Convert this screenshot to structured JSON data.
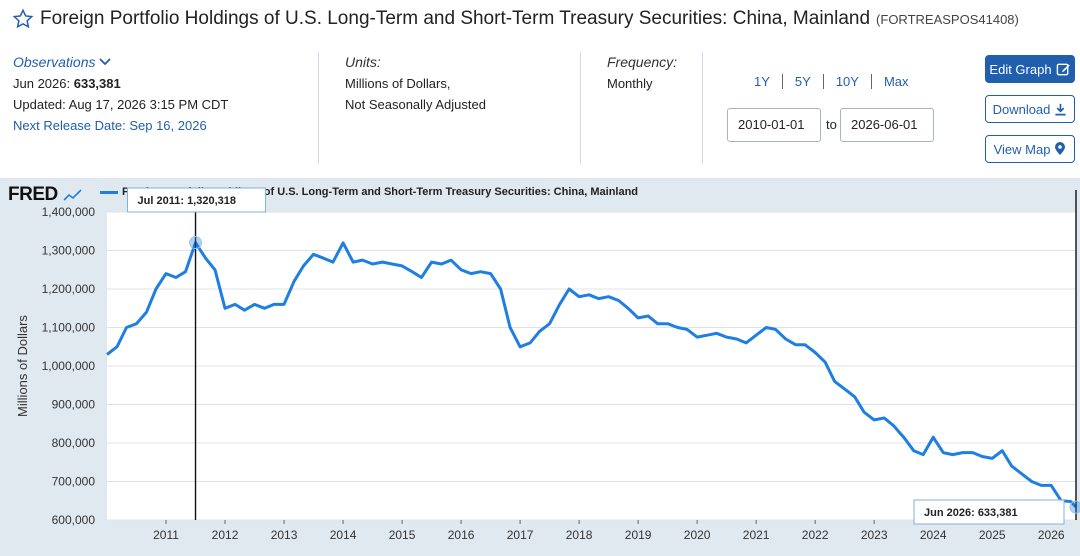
{
  "header": {
    "title": "Foreign Portfolio Holdings of U.S. Long-Term and Short-Term Treasury Securities: China, Mainland",
    "series_id": "(FORTREASPOS41408)"
  },
  "observations": {
    "label": "Observations",
    "latest": "Jun 2026:",
    "latest_value": "633,381",
    "updated": "Updated: Aug 17, 2026 3:15 PM CDT",
    "next_release": "Next Release Date: Sep 16, 2026"
  },
  "units": {
    "label": "Units:",
    "line1": "Millions of Dollars,",
    "line2": "Not Seasonally Adjusted"
  },
  "frequency": {
    "label": "Frequency:",
    "value": "Monthly"
  },
  "range": {
    "links": [
      "1Y",
      "5Y",
      "10Y",
      "Max"
    ],
    "start": "2010-01-01",
    "to": "to",
    "end": "2026-06-01"
  },
  "buttons": {
    "edit": "Edit Graph",
    "download": "Download",
    "view_map": "View Map"
  },
  "brand": {
    "logo": "FRED"
  },
  "colors": {
    "accent": "#1f5fad",
    "line": "#1e7fe0",
    "chart_bg": "#e1e9f0"
  },
  "chart_data": {
    "type": "line",
    "title": "",
    "ylabel": "Millions of Dollars",
    "xlabel": "",
    "ylim": [
      600000,
      1400000
    ],
    "yticks": [
      600000,
      700000,
      800000,
      900000,
      1000000,
      1100000,
      1200000,
      1300000,
      1400000
    ],
    "ytick_labels": [
      "600,000",
      "700,000",
      "800,000",
      "900,000",
      "1,000,000",
      "1,100,000",
      "1,200,000",
      "1,300,000",
      "1,400,000"
    ],
    "xlim": [
      2010.0,
      2026.42
    ],
    "xtick_labels": [
      "2011",
      "2012",
      "2013",
      "2014",
      "2015",
      "2016",
      "2017",
      "2018",
      "2019",
      "2020",
      "2021",
      "2022",
      "2023",
      "2024",
      "2025",
      "2026"
    ],
    "series": [
      {
        "name": "Foreign Portfolio Holdings of U.S. Long-Term and Short-Term Treasury Securities: China, Mainland",
        "points": [
          [
            2010.0,
            1030000
          ],
          [
            2010.17,
            1050000
          ],
          [
            2010.33,
            1100000
          ],
          [
            2010.5,
            1110000
          ],
          [
            2010.67,
            1140000
          ],
          [
            2010.83,
            1200000
          ],
          [
            2011.0,
            1240000
          ],
          [
            2011.17,
            1230000
          ],
          [
            2011.33,
            1245000
          ],
          [
            2011.5,
            1320318
          ],
          [
            2011.67,
            1280000
          ],
          [
            2011.83,
            1250000
          ],
          [
            2012.0,
            1150000
          ],
          [
            2012.17,
            1160000
          ],
          [
            2012.33,
            1145000
          ],
          [
            2012.5,
            1160000
          ],
          [
            2012.67,
            1150000
          ],
          [
            2012.83,
            1160000
          ],
          [
            2013.0,
            1160000
          ],
          [
            2013.17,
            1220000
          ],
          [
            2013.33,
            1260000
          ],
          [
            2013.5,
            1290000
          ],
          [
            2013.67,
            1280000
          ],
          [
            2013.83,
            1270000
          ],
          [
            2014.0,
            1320000
          ],
          [
            2014.17,
            1270000
          ],
          [
            2014.33,
            1275000
          ],
          [
            2014.5,
            1265000
          ],
          [
            2014.67,
            1270000
          ],
          [
            2014.83,
            1265000
          ],
          [
            2015.0,
            1260000
          ],
          [
            2015.17,
            1245000
          ],
          [
            2015.33,
            1230000
          ],
          [
            2015.5,
            1270000
          ],
          [
            2015.67,
            1265000
          ],
          [
            2015.83,
            1275000
          ],
          [
            2016.0,
            1250000
          ],
          [
            2016.17,
            1240000
          ],
          [
            2016.33,
            1245000
          ],
          [
            2016.5,
            1240000
          ],
          [
            2016.67,
            1200000
          ],
          [
            2016.83,
            1100000
          ],
          [
            2017.0,
            1050000
          ],
          [
            2017.17,
            1060000
          ],
          [
            2017.33,
            1090000
          ],
          [
            2017.5,
            1110000
          ],
          [
            2017.67,
            1160000
          ],
          [
            2017.83,
            1200000
          ],
          [
            2018.0,
            1180000
          ],
          [
            2018.17,
            1185000
          ],
          [
            2018.33,
            1175000
          ],
          [
            2018.5,
            1180000
          ],
          [
            2018.67,
            1170000
          ],
          [
            2018.83,
            1150000
          ],
          [
            2019.0,
            1125000
          ],
          [
            2019.17,
            1130000
          ],
          [
            2019.33,
            1110000
          ],
          [
            2019.5,
            1110000
          ],
          [
            2019.67,
            1100000
          ],
          [
            2019.83,
            1095000
          ],
          [
            2020.0,
            1075000
          ],
          [
            2020.17,
            1080000
          ],
          [
            2020.33,
            1085000
          ],
          [
            2020.5,
            1075000
          ],
          [
            2020.67,
            1070000
          ],
          [
            2020.83,
            1060000
          ],
          [
            2021.0,
            1080000
          ],
          [
            2021.17,
            1100000
          ],
          [
            2021.33,
            1095000
          ],
          [
            2021.5,
            1070000
          ],
          [
            2021.67,
            1055000
          ],
          [
            2021.83,
            1055000
          ],
          [
            2022.0,
            1035000
          ],
          [
            2022.17,
            1010000
          ],
          [
            2022.33,
            960000
          ],
          [
            2022.5,
            940000
          ],
          [
            2022.67,
            920000
          ],
          [
            2022.83,
            880000
          ],
          [
            2023.0,
            860000
          ],
          [
            2023.17,
            865000
          ],
          [
            2023.33,
            845000
          ],
          [
            2023.5,
            815000
          ],
          [
            2023.67,
            780000
          ],
          [
            2023.83,
            770000
          ],
          [
            2024.0,
            815000
          ],
          [
            2024.17,
            775000
          ],
          [
            2024.33,
            770000
          ],
          [
            2024.5,
            775000
          ],
          [
            2024.67,
            775000
          ],
          [
            2024.83,
            765000
          ],
          [
            2025.0,
            760000
          ],
          [
            2025.17,
            780000
          ],
          [
            2025.33,
            740000
          ],
          [
            2025.5,
            720000
          ],
          [
            2025.67,
            700000
          ],
          [
            2025.83,
            690000
          ],
          [
            2026.0,
            690000
          ],
          [
            2026.17,
            650000
          ],
          [
            2026.33,
            648000
          ],
          [
            2026.42,
            633381
          ]
        ]
      }
    ],
    "tooltips": [
      {
        "label": "Jul 2011:",
        "value": "1,320,318"
      },
      {
        "label": "Jun 2026:",
        "value": "633,381"
      }
    ],
    "grid": true
  }
}
